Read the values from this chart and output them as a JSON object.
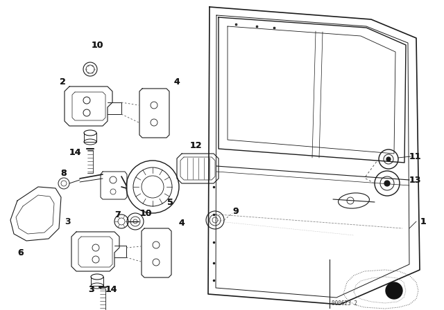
{
  "background_color": "#ffffff",
  "diagram_code": "000623 2",
  "color": "#1a1a1a",
  "lw": 0.9
}
